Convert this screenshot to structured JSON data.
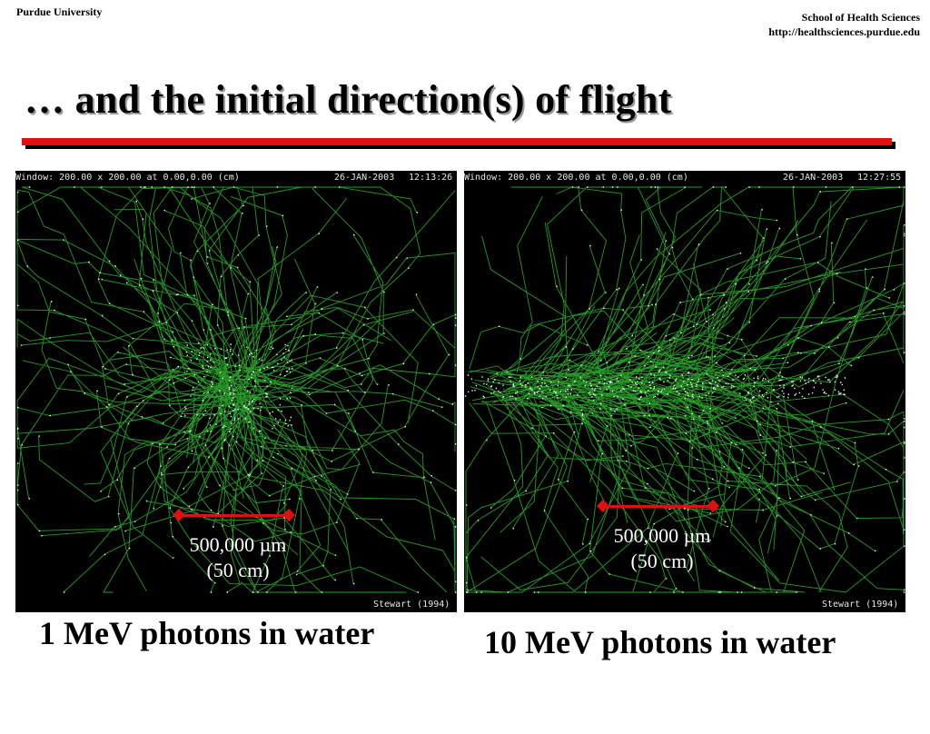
{
  "header": {
    "left": "Purdue University",
    "right_line1": "School of Health Sciences",
    "right_line2": "http://healthsciences.purdue.edu"
  },
  "title": "… and the initial direction(s) of flight",
  "panels": [
    {
      "window_info": "Window: 200.00 x 200.00 at 0.00,0.00 (cm)",
      "date": "26-JAN-2003",
      "time": "12:13:26",
      "scale_value": "500,000 µm",
      "scale_cm": "(50 cm)",
      "credit": "Stewart (1994)",
      "caption": "1 MeV photons in water",
      "track_color": "#2fb52f"
    },
    {
      "window_info": "Window: 200.00 x 200.00 at 0.00,0.00 (cm)",
      "date": "26-JAN-2003",
      "time": "12:27:55",
      "scale_value": "500,000 µm",
      "scale_cm": "(50 cm)",
      "credit": "Stewart (1994)",
      "caption": "10 MeV photons in water",
      "track_color": "#2fb52f"
    }
  ],
  "colors": {
    "accent_red": "#e01010",
    "panel_bg": "#000000"
  }
}
